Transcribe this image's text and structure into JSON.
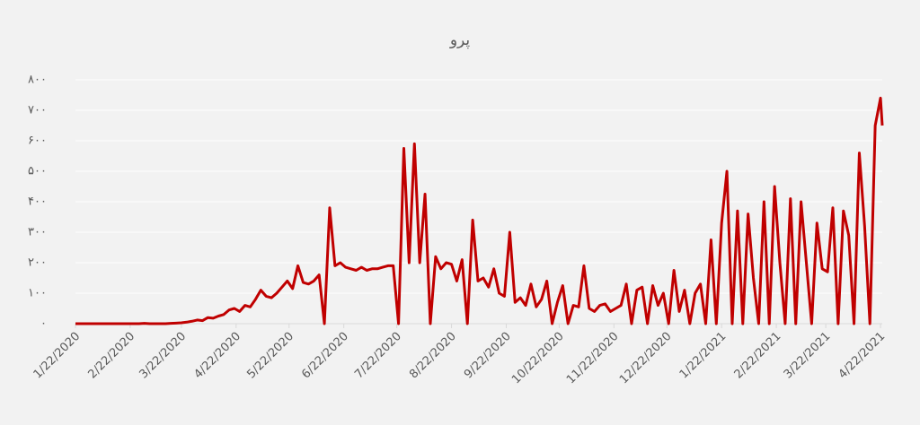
{
  "chart_data": {
    "type": "line",
    "title": "پرو",
    "color": "#c00000",
    "grid": true,
    "x": [
      "1/22/2020",
      "1/25/2020",
      "1/28/2020",
      "1/31/2020",
      "2/3/2020",
      "2/6/2020",
      "2/9/2020",
      "2/12/2020",
      "2/15/2020",
      "2/18/2020",
      "2/21/2020",
      "2/24/2020",
      "2/27/2020",
      "3/1/2020",
      "3/4/2020",
      "3/7/2020",
      "3/10/2020",
      "3/13/2020",
      "3/16/2020",
      "3/19/2020",
      "3/22/2020",
      "3/25/2020",
      "3/28/2020",
      "3/31/2020",
      "4/3/2020",
      "4/6/2020",
      "4/9/2020",
      "4/12/2020",
      "4/15/2020",
      "4/18/2020",
      "4/21/2020",
      "4/24/2020",
      "4/27/2020",
      "4/30/2020",
      "5/3/2020",
      "5/6/2020",
      "5/9/2020",
      "5/12/2020",
      "5/15/2020",
      "5/18/2020",
      "5/21/2020",
      "5/24/2020",
      "5/27/2020",
      "5/30/2020",
      "6/2/2020",
      "6/5/2020",
      "6/8/2020",
      "6/11/2020",
      "6/14/2020",
      "6/17/2020",
      "6/20/2020",
      "6/23/2020",
      "6/26/2020",
      "6/29/2020",
      "7/2/2020",
      "7/5/2020",
      "7/8/2020",
      "7/11/2020",
      "7/14/2020",
      "7/17/2020",
      "7/20/2020",
      "7/23/2020",
      "7/26/2020",
      "7/29/2020",
      "8/1/2020",
      "8/4/2020",
      "8/7/2020",
      "8/10/2020",
      "8/13/2020",
      "8/16/2020",
      "8/19/2020",
      "8/22/2020",
      "8/25/2020",
      "8/28/2020",
      "8/31/2020",
      "9/3/2020",
      "9/6/2020",
      "9/9/2020",
      "9/12/2020",
      "9/15/2020",
      "9/18/2020",
      "9/21/2020",
      "9/24/2020",
      "9/27/2020",
      "9/30/2020",
      "10/3/2020",
      "10/6/2020",
      "10/9/2020",
      "10/12/2020",
      "10/15/2020",
      "10/18/2020",
      "10/21/2020",
      "10/24/2020",
      "10/27/2020",
      "10/30/2020",
      "11/2/2020",
      "11/5/2020",
      "11/8/2020",
      "11/11/2020",
      "11/14/2020",
      "11/17/2020",
      "11/20/2020",
      "11/23/2020",
      "11/26/2020",
      "11/29/2020",
      "12/2/2020",
      "12/5/2020",
      "12/8/2020",
      "12/11/2020",
      "12/14/2020",
      "12/17/2020",
      "12/20/2020",
      "12/23/2020",
      "12/26/2020",
      "12/29/2020",
      "1/1/2021",
      "1/4/2021",
      "1/7/2021",
      "1/10/2021",
      "1/13/2021",
      "1/16/2021",
      "1/19/2021",
      "1/22/2021",
      "1/25/2021",
      "1/28/2021",
      "1/31/2021",
      "2/3/2021",
      "2/6/2021",
      "2/9/2021",
      "2/12/2021",
      "2/15/2021",
      "2/18/2021",
      "2/21/2021",
      "2/24/2021",
      "2/27/2021",
      "3/2/2021",
      "3/5/2021",
      "3/8/2021",
      "3/11/2021",
      "3/14/2021",
      "3/17/2021",
      "3/20/2021",
      "3/23/2021",
      "3/26/2021",
      "3/29/2021",
      "4/1/2021",
      "4/4/2021",
      "4/7/2021",
      "4/10/2021",
      "4/13/2021",
      "4/16/2021",
      "4/19/2021",
      "4/22/2021",
      "4/23/2021"
    ],
    "values": [
      0,
      0,
      0,
      0,
      0,
      0,
      0,
      0,
      0,
      0,
      0,
      0,
      0,
      1,
      0,
      0,
      0,
      0,
      1,
      2,
      3,
      5,
      8,
      12,
      10,
      20,
      18,
      25,
      30,
      45,
      50,
      40,
      60,
      55,
      80,
      110,
      90,
      85,
      100,
      120,
      140,
      115,
      190,
      135,
      130,
      140,
      160,
      0,
      380,
      190,
      200,
      185,
      180,
      175,
      185,
      175,
      180,
      180,
      185,
      190,
      190,
      0,
      575,
      200,
      590,
      200,
      425,
      0,
      220,
      180,
      200,
      195,
      140,
      210,
      0,
      340,
      140,
      150,
      120,
      180,
      100,
      90,
      300,
      70,
      85,
      60,
      130,
      55,
      80,
      140,
      0,
      70,
      125,
      0,
      60,
      55,
      190,
      50,
      40,
      60,
      65,
      40,
      50,
      60,
      130,
      0,
      110,
      120,
      0,
      125,
      60,
      100,
      0,
      175,
      40,
      110,
      0,
      100,
      130,
      0,
      275,
      0,
      330,
      500,
      0,
      370,
      0,
      360,
      150,
      0,
      400,
      0,
      450,
      200,
      0,
      410,
      0,
      400,
      200,
      0,
      330,
      180,
      170,
      380,
      0,
      370,
      290,
      0,
      560,
      320,
      0,
      650,
      740,
      650
    ],
    "xlim": [
      "1/22/2020",
      "4/23/2021"
    ],
    "xticks": [
      "1/22/2020",
      "2/22/2020",
      "3/22/2020",
      "4/22/2020",
      "5/22/2020",
      "6/22/2020",
      "7/22/2020",
      "8/22/2020",
      "9/22/2020",
      "10/22/2020",
      "11/22/2020",
      "12/22/2020",
      "1/22/2021",
      "2/22/2021",
      "3/22/2021",
      "4/22/2021"
    ],
    "ylim": [
      0,
      800
    ],
    "yticks": [
      {
        "value": 0,
        "label": "۰"
      },
      {
        "value": 100,
        "label": "۱۰۰"
      },
      {
        "value": 200,
        "label": "۲۰۰"
      },
      {
        "value": 300,
        "label": "۳۰۰"
      },
      {
        "value": 400,
        "label": "۴۰۰"
      },
      {
        "value": 500,
        "label": "۵۰۰"
      },
      {
        "value": 600,
        "label": "۶۰۰"
      },
      {
        "value": 700,
        "label": "۷۰۰"
      },
      {
        "value": 800,
        "label": "۸۰۰"
      }
    ]
  }
}
